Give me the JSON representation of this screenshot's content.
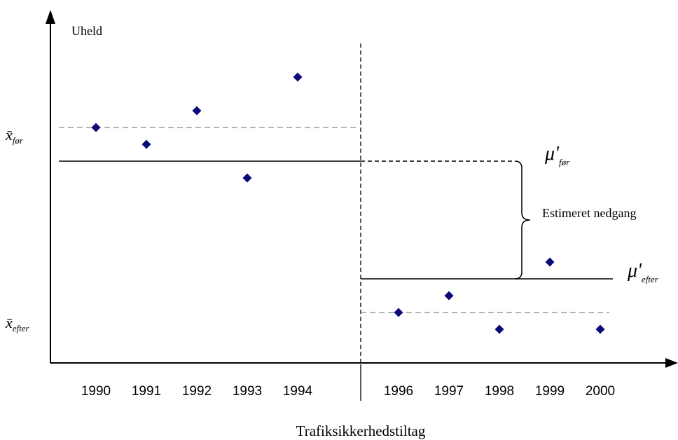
{
  "chart_data": {
    "type": "scatter",
    "ylabel": "Uheld",
    "xlabel": "Trafiksikkerhedstiltag",
    "categories": [
      "1990",
      "1991",
      "1992",
      "1993",
      "1994",
      "1996",
      "1997",
      "1998",
      "1999",
      "2000"
    ],
    "series": [
      {
        "values": [
          {
            "x": "1990",
            "y": 14
          },
          {
            "x": "1991",
            "y": 13
          },
          {
            "x": "1992",
            "y": 15
          },
          {
            "x": "1993",
            "y": 11
          },
          {
            "x": "1994",
            "y": 17
          },
          {
            "x": "1996",
            "y": 3
          },
          {
            "x": "1997",
            "y": 4
          },
          {
            "x": "1998",
            "y": 2
          },
          {
            "x": "1999",
            "y": 6
          },
          {
            "x": "2000",
            "y": 2
          }
        ]
      }
    ],
    "ylim": [
      0,
      20
    ],
    "treatment_x": "1995",
    "reference_lines": [
      {
        "label": "x̄",
        "sub": "før",
        "y": 14,
        "style": "dashed-gray"
      },
      {
        "label": "x̄",
        "sub": "efter",
        "y": 3,
        "style": "dashed-gray"
      },
      {
        "label": "μ'",
        "sub": "før",
        "y": 12,
        "style": "solid-then-dashed"
      },
      {
        "label": "μ'",
        "sub": "efter",
        "y": 5,
        "style": "solid"
      }
    ],
    "annotation": "Estimeret nedgang",
    "marker_color": "#0a0a7a",
    "ref_line_gray": "#9a9a9a"
  }
}
